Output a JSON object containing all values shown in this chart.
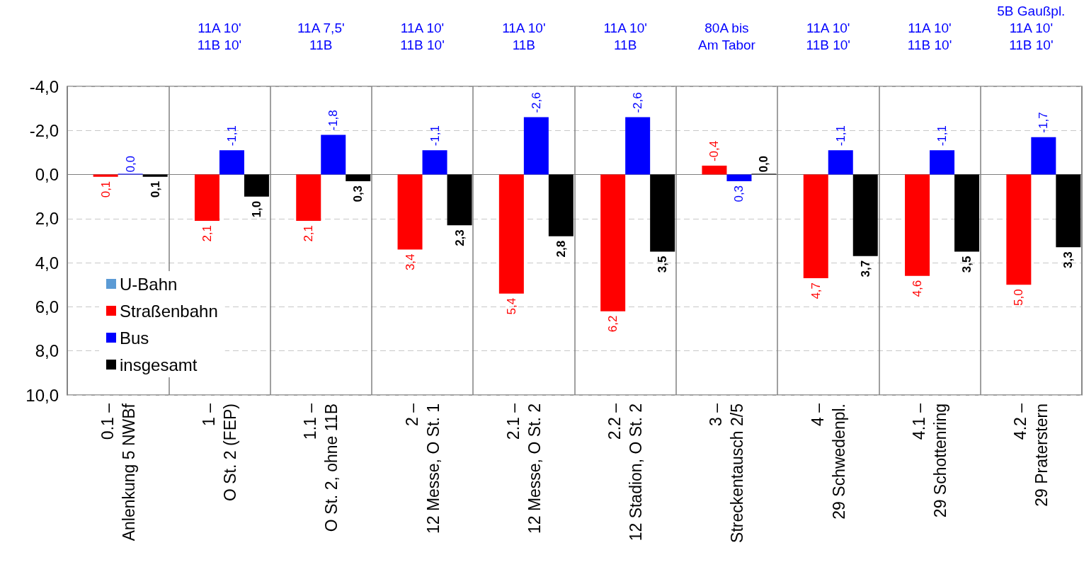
{
  "chart_data": {
    "type": "bar",
    "categories": [
      "0.1 –\nAnlenkung 5 NWBf",
      "1 –\nO St. 2 (FEP)",
      "1.1 –\nO St. 2, ohne 11B",
      "2 –\n12 Messe, O St. 1",
      "2.1 –\n12 Messe, O St. 2",
      "2.2 –\n12 Stadion, O St. 2",
      "3 –\nStreckentausch 2/5",
      "4 –\n29 Schwedenpl.",
      "4.1 –\n29 Schottenring",
      "4.2 –\n29 Praterstern"
    ],
    "series": [
      {
        "name": "U-Bahn",
        "color": "#5b9bd5",
        "values": [
          null,
          null,
          null,
          null,
          null,
          null,
          null,
          null,
          null,
          null
        ]
      },
      {
        "name": "Straßenbahn",
        "color": "#ff0000",
        "values": [
          0.1,
          2.1,
          2.1,
          3.4,
          5.4,
          6.2,
          -0.4,
          4.7,
          4.6,
          5.0
        ],
        "value_labels": [
          "0,1",
          "2,1",
          "2,1",
          "3,4",
          "5,4",
          "6,2",
          "-0,4",
          "4,7",
          "4,6",
          "5,0"
        ]
      },
      {
        "name": "Bus",
        "color": "#0000ff",
        "values": [
          0.0,
          -1.1,
          -1.8,
          -1.1,
          -2.6,
          -2.6,
          0.3,
          -1.1,
          -1.1,
          -1.7
        ],
        "value_labels": [
          "0,0",
          "-1,1",
          "-1,8",
          "-1,1",
          "-2,6",
          "-2,6",
          "0,3",
          "-1,1",
          "-1,1",
          "-1,7"
        ]
      },
      {
        "name": "insgesamt",
        "color": "#000000",
        "values": [
          0.1,
          1.0,
          0.3,
          2.3,
          2.8,
          3.5,
          0.0,
          3.7,
          3.5,
          3.3
        ],
        "value_labels": [
          "0,1",
          "1,0",
          "0,3",
          "2,3",
          "2,8",
          "3,5",
          "0,0",
          "3,7",
          "3,5",
          "3,3"
        ]
      }
    ],
    "ylim": [
      10,
      -4
    ],
    "yticks": [
      {
        "value": -4,
        "label": "-4,0"
      },
      {
        "value": -2,
        "label": "-2,0"
      },
      {
        "value": 0,
        "label": "0,0"
      },
      {
        "value": 2,
        "label": "2,0"
      },
      {
        "value": 4,
        "label": "4,0"
      },
      {
        "value": 6,
        "label": "6,0"
      },
      {
        "value": 8,
        "label": "8,0"
      },
      {
        "value": 10,
        "label": "10,0"
      }
    ],
    "grid": true,
    "legend": "bottom left",
    "annotations": [
      "11A 10'\n11B 10'",
      "11A 7,5'\n11B",
      "11A 10'\n11B 10'",
      "11A 10'\n11B",
      "11A 10'\n11B",
      "80A bis\nAm Tabor",
      "11A 10'\n11B 10'",
      "11A 10'\n11B 10'",
      "5B Gaußpl.\n11A 10'\n11B 10'"
    ]
  }
}
